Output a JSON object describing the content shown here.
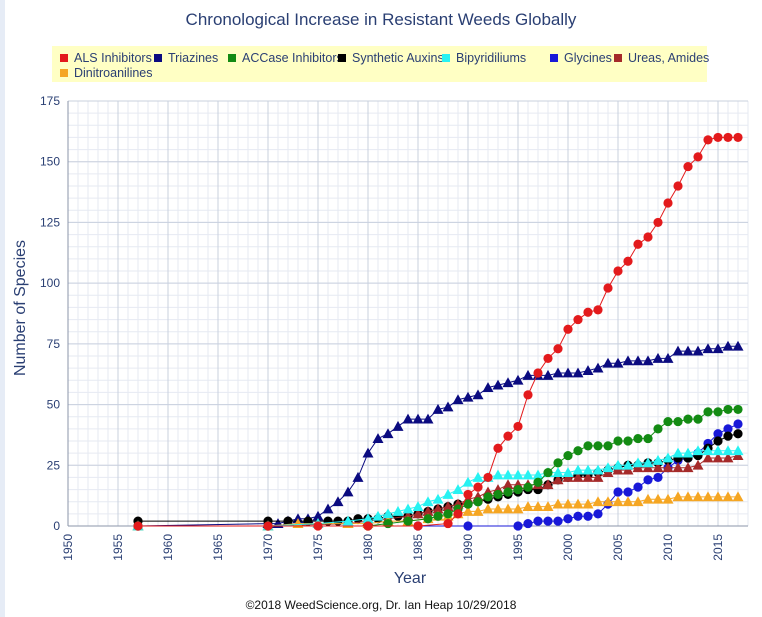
{
  "chart_data": {
    "type": "line",
    "title": "Chronological Increase in Resistant Weeds Globally",
    "xlabel": "Year",
    "ylabel": "Number of Species",
    "xlim": [
      1950,
      2018
    ],
    "ylim": [
      0,
      175
    ],
    "xticks": [
      1950,
      1955,
      1960,
      1965,
      1970,
      1975,
      1980,
      1985,
      1990,
      1995,
      2000,
      2005,
      2010,
      2015
    ],
    "yticks": [
      0,
      25,
      50,
      75,
      100,
      125,
      150,
      175
    ],
    "grid": true,
    "legend_position": "top",
    "series": [
      {
        "name": "ALS Inhibitors",
        "color": "#e31a1c",
        "marker": "circle",
        "points": [
          [
            1957,
            0
          ],
          [
            1970,
            0
          ],
          [
            1975,
            0
          ],
          [
            1980,
            0
          ],
          [
            1985,
            0
          ],
          [
            1988,
            1
          ],
          [
            1989,
            5
          ],
          [
            1990,
            13
          ],
          [
            1991,
            16
          ],
          [
            1992,
            20
          ],
          [
            1993,
            32
          ],
          [
            1994,
            37
          ],
          [
            1995,
            41
          ],
          [
            1996,
            54
          ],
          [
            1997,
            63
          ],
          [
            1998,
            69
          ],
          [
            1999,
            73
          ],
          [
            2000,
            81
          ],
          [
            2001,
            85
          ],
          [
            2002,
            88
          ],
          [
            2003,
            89
          ],
          [
            2004,
            98
          ],
          [
            2005,
            105
          ],
          [
            2006,
            109
          ],
          [
            2007,
            116
          ],
          [
            2008,
            119
          ],
          [
            2009,
            125
          ],
          [
            2010,
            133
          ],
          [
            2011,
            140
          ],
          [
            2012,
            148
          ],
          [
            2013,
            152
          ],
          [
            2014,
            159
          ],
          [
            2015,
            160
          ],
          [
            2016,
            160
          ],
          [
            2017,
            160
          ]
        ]
      },
      {
        "name": "Triazines",
        "color": "#0b0b80",
        "marker": "triangle",
        "points": [
          [
            1957,
            0
          ],
          [
            1970,
            1
          ],
          [
            1971,
            1
          ],
          [
            1972,
            2
          ],
          [
            1973,
            3
          ],
          [
            1974,
            3
          ],
          [
            1975,
            4
          ],
          [
            1976,
            7
          ],
          [
            1977,
            10
          ],
          [
            1978,
            14
          ],
          [
            1979,
            20
          ],
          [
            1980,
            30
          ],
          [
            1981,
            36
          ],
          [
            1982,
            38
          ],
          [
            1983,
            41
          ],
          [
            1984,
            44
          ],
          [
            1985,
            44
          ],
          [
            1986,
            44
          ],
          [
            1987,
            48
          ],
          [
            1988,
            49
          ],
          [
            1989,
            52
          ],
          [
            1990,
            53
          ],
          [
            1991,
            54
          ],
          [
            1992,
            57
          ],
          [
            1993,
            58
          ],
          [
            1994,
            59
          ],
          [
            1995,
            60
          ],
          [
            1996,
            62
          ],
          [
            1997,
            62
          ],
          [
            1998,
            62
          ],
          [
            1999,
            63
          ],
          [
            2000,
            63
          ],
          [
            2001,
            63
          ],
          [
            2002,
            64
          ],
          [
            2003,
            65
          ],
          [
            2004,
            67
          ],
          [
            2005,
            67
          ],
          [
            2006,
            68
          ],
          [
            2007,
            68
          ],
          [
            2008,
            68
          ],
          [
            2009,
            69
          ],
          [
            2010,
            69
          ],
          [
            2011,
            72
          ],
          [
            2012,
            72
          ],
          [
            2013,
            72
          ],
          [
            2014,
            73
          ],
          [
            2015,
            73
          ],
          [
            2016,
            74
          ],
          [
            2017,
            74
          ]
        ]
      },
      {
        "name": "ACCase Inhibitors",
        "color": "#138b13",
        "marker": "circle",
        "points": [
          [
            1957,
            0
          ],
          [
            1970,
            0
          ],
          [
            1980,
            0
          ],
          [
            1982,
            1
          ],
          [
            1984,
            2
          ],
          [
            1986,
            3
          ],
          [
            1987,
            4
          ],
          [
            1988,
            5
          ],
          [
            1989,
            7
          ],
          [
            1990,
            9
          ],
          [
            1991,
            10
          ],
          [
            1992,
            12
          ],
          [
            1993,
            13
          ],
          [
            1994,
            14
          ],
          [
            1995,
            15
          ],
          [
            1996,
            16
          ],
          [
            1997,
            18
          ],
          [
            1998,
            22
          ],
          [
            1999,
            26
          ],
          [
            2000,
            29
          ],
          [
            2001,
            31
          ],
          [
            2002,
            33
          ],
          [
            2003,
            33
          ],
          [
            2004,
            33
          ],
          [
            2005,
            35
          ],
          [
            2006,
            35
          ],
          [
            2007,
            36
          ],
          [
            2008,
            36
          ],
          [
            2009,
            40
          ],
          [
            2010,
            43
          ],
          [
            2011,
            43
          ],
          [
            2012,
            44
          ],
          [
            2013,
            44
          ],
          [
            2014,
            47
          ],
          [
            2015,
            47
          ],
          [
            2016,
            48
          ],
          [
            2017,
            48
          ]
        ]
      },
      {
        "name": "Synthetic Auxins",
        "color": "#000000",
        "marker": "circle",
        "points": [
          [
            1957,
            2
          ],
          [
            1970,
            2
          ],
          [
            1972,
            2
          ],
          [
            1974,
            2
          ],
          [
            1976,
            2
          ],
          [
            1977,
            2
          ],
          [
            1978,
            2
          ],
          [
            1979,
            3
          ],
          [
            1980,
            3
          ],
          [
            1981,
            3
          ],
          [
            1982,
            4
          ],
          [
            1983,
            4
          ],
          [
            1984,
            4
          ],
          [
            1985,
            5
          ],
          [
            1986,
            6
          ],
          [
            1987,
            7
          ],
          [
            1988,
            8
          ],
          [
            1989,
            9
          ],
          [
            1990,
            9
          ],
          [
            1991,
            10
          ],
          [
            1992,
            11
          ],
          [
            1993,
            12
          ],
          [
            1994,
            13
          ],
          [
            1995,
            14
          ],
          [
            1996,
            15
          ],
          [
            1997,
            15
          ],
          [
            1998,
            17
          ],
          [
            1999,
            19
          ],
          [
            2000,
            20
          ],
          [
            2001,
            21
          ],
          [
            2002,
            21
          ],
          [
            2003,
            22
          ],
          [
            2004,
            23
          ],
          [
            2005,
            24
          ],
          [
            2006,
            25
          ],
          [
            2007,
            25
          ],
          [
            2008,
            26
          ],
          [
            2009,
            26
          ],
          [
            2010,
            27
          ],
          [
            2011,
            28
          ],
          [
            2012,
            28
          ],
          [
            2013,
            29
          ],
          [
            2014,
            32
          ],
          [
            2015,
            35
          ],
          [
            2016,
            37
          ],
          [
            2017,
            38
          ]
        ]
      },
      {
        "name": "Bipyridiliums",
        "color": "#28f2f2",
        "marker": "triangle",
        "points": [
          [
            1957,
            0
          ],
          [
            1970,
            0
          ],
          [
            1975,
            1
          ],
          [
            1978,
            2
          ],
          [
            1980,
            3
          ],
          [
            1981,
            4
          ],
          [
            1982,
            5
          ],
          [
            1983,
            6
          ],
          [
            1984,
            7
          ],
          [
            1985,
            8
          ],
          [
            1986,
            10
          ],
          [
            1987,
            11
          ],
          [
            1988,
            13
          ],
          [
            1989,
            15
          ],
          [
            1990,
            18
          ],
          [
            1991,
            20
          ],
          [
            1992,
            20
          ],
          [
            1993,
            21
          ],
          [
            1994,
            21
          ],
          [
            1995,
            21
          ],
          [
            1996,
            21
          ],
          [
            1997,
            21
          ],
          [
            1998,
            22
          ],
          [
            1999,
            22
          ],
          [
            2000,
            22
          ],
          [
            2001,
            23
          ],
          [
            2002,
            23
          ],
          [
            2003,
            23
          ],
          [
            2004,
            24
          ],
          [
            2005,
            25
          ],
          [
            2006,
            25
          ],
          [
            2007,
            26
          ],
          [
            2008,
            26
          ],
          [
            2009,
            27
          ],
          [
            2010,
            28
          ],
          [
            2011,
            30
          ],
          [
            2012,
            30
          ],
          [
            2013,
            31
          ],
          [
            2014,
            31
          ],
          [
            2015,
            31
          ],
          [
            2016,
            31
          ],
          [
            2017,
            31
          ]
        ]
      },
      {
        "name": "Glycines",
        "color": "#1818d8",
        "marker": "circle",
        "points": [
          [
            1957,
            0
          ],
          [
            1970,
            0
          ],
          [
            1985,
            0
          ],
          [
            1990,
            0
          ],
          [
            1995,
            0
          ],
          [
            1996,
            1
          ],
          [
            1997,
            2
          ],
          [
            1998,
            2
          ],
          [
            1999,
            2
          ],
          [
            2000,
            3
          ],
          [
            2001,
            4
          ],
          [
            2002,
            4
          ],
          [
            2003,
            5
          ],
          [
            2004,
            9
          ],
          [
            2005,
            14
          ],
          [
            2006,
            14
          ],
          [
            2007,
            16
          ],
          [
            2008,
            19
          ],
          [
            2009,
            20
          ],
          [
            2010,
            24
          ],
          [
            2011,
            27
          ],
          [
            2012,
            28
          ],
          [
            2013,
            30
          ],
          [
            2014,
            34
          ],
          [
            2015,
            38
          ],
          [
            2016,
            40
          ],
          [
            2017,
            42
          ]
        ]
      },
      {
        "name": "Ureas, Amides",
        "color": "#a52a2a",
        "marker": "triangle",
        "points": [
          [
            1957,
            0
          ],
          [
            1970,
            0
          ],
          [
            1978,
            1
          ],
          [
            1980,
            2
          ],
          [
            1982,
            3
          ],
          [
            1984,
            4
          ],
          [
            1985,
            5
          ],
          [
            1986,
            6
          ],
          [
            1987,
            7
          ],
          [
            1988,
            8
          ],
          [
            1989,
            9
          ],
          [
            1990,
            11
          ],
          [
            1991,
            12
          ],
          [
            1992,
            14
          ],
          [
            1993,
            15
          ],
          [
            1994,
            17
          ],
          [
            1995,
            17
          ],
          [
            1996,
            17
          ],
          [
            1997,
            17
          ],
          [
            1998,
            17
          ],
          [
            1999,
            19
          ],
          [
            2000,
            20
          ],
          [
            2001,
            20
          ],
          [
            2002,
            20
          ],
          [
            2003,
            20
          ],
          [
            2004,
            22
          ],
          [
            2005,
            23
          ],
          [
            2006,
            23
          ],
          [
            2007,
            24
          ],
          [
            2008,
            24
          ],
          [
            2009,
            24
          ],
          [
            2010,
            24
          ],
          [
            2011,
            24
          ],
          [
            2012,
            24
          ],
          [
            2013,
            25
          ],
          [
            2014,
            28
          ],
          [
            2015,
            28
          ],
          [
            2016,
            28
          ],
          [
            2017,
            29
          ]
        ]
      },
      {
        "name": "Dinitroanilines",
        "color": "#f5a623",
        "marker": "triangle",
        "points": [
          [
            1957,
            0
          ],
          [
            1970,
            0
          ],
          [
            1973,
            1
          ],
          [
            1975,
            1
          ],
          [
            1978,
            1
          ],
          [
            1980,
            1
          ],
          [
            1982,
            2
          ],
          [
            1984,
            2
          ],
          [
            1986,
            3
          ],
          [
            1987,
            4
          ],
          [
            1988,
            4
          ],
          [
            1989,
            5
          ],
          [
            1990,
            6
          ],
          [
            1991,
            6
          ],
          [
            1992,
            7
          ],
          [
            1993,
            7
          ],
          [
            1994,
            7
          ],
          [
            1995,
            7
          ],
          [
            1996,
            8
          ],
          [
            1997,
            8
          ],
          [
            1998,
            8
          ],
          [
            1999,
            9
          ],
          [
            2000,
            9
          ],
          [
            2001,
            9
          ],
          [
            2002,
            9
          ],
          [
            2003,
            10
          ],
          [
            2004,
            10
          ],
          [
            2005,
            10
          ],
          [
            2006,
            10
          ],
          [
            2007,
            10
          ],
          [
            2008,
            11
          ],
          [
            2009,
            11
          ],
          [
            2010,
            11
          ],
          [
            2011,
            12
          ],
          [
            2012,
            12
          ],
          [
            2013,
            12
          ],
          [
            2014,
            12
          ],
          [
            2015,
            12
          ],
          [
            2016,
            12
          ],
          [
            2017,
            12
          ]
        ]
      }
    ]
  },
  "footer": "©2018 WeedScience.org, Dr. Ian Heap 10/29/2018"
}
